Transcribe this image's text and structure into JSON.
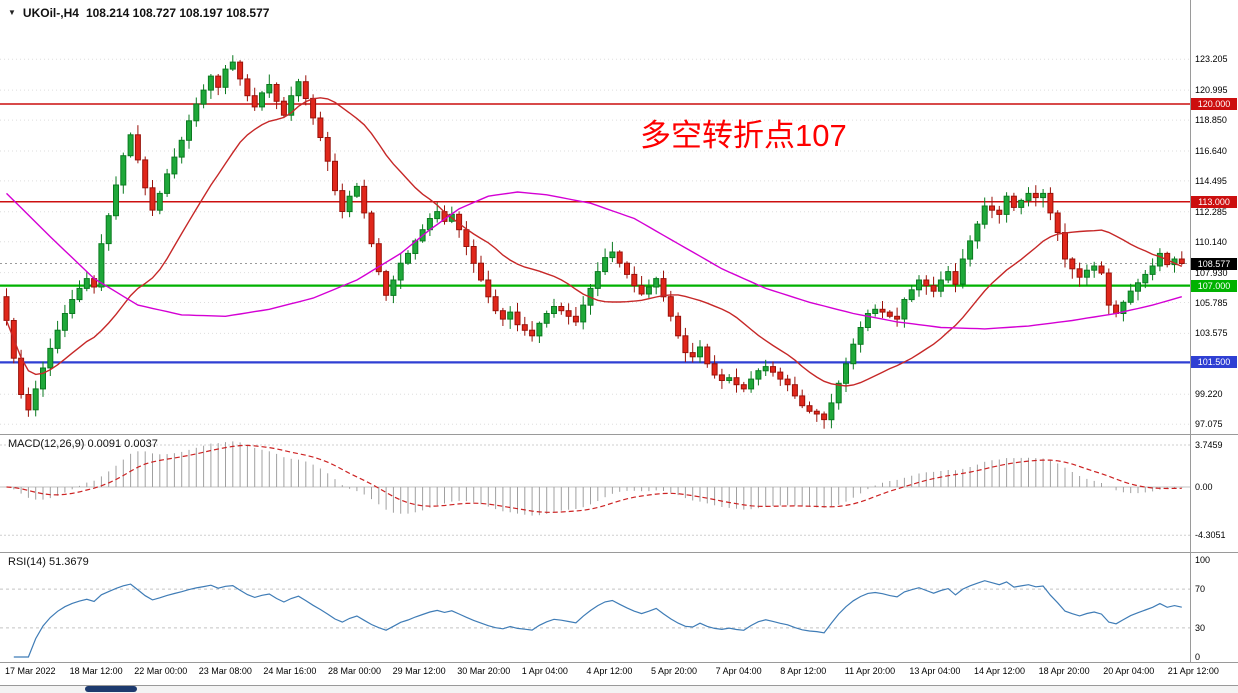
{
  "chart": {
    "symbol_period": "UKOil-,H4",
    "ohlc_readout": "108.214 108.727 108.197 108.577",
    "dropdown_icon": "▼",
    "annotation": {
      "text": "多空转折点107",
      "color": "#fe0000"
    },
    "price_axis_labels": [
      "123.205",
      "120.995",
      "118.850",
      "116.640",
      "114.495",
      "112.285",
      "110.140",
      "107.930",
      "105.785",
      "103.575",
      "99.220",
      "97.075"
    ],
    "levels": [
      {
        "label": "120.000",
        "value": 120.0,
        "color": "#cc0f0f",
        "width": 1.5
      },
      {
        "label": "113.000",
        "value": 113.0,
        "color": "#cc0f0f",
        "width": 1.5
      },
      {
        "label": "107.000",
        "value": 107.0,
        "color": "#00b200",
        "width": 2.2
      },
      {
        "label": "101.500",
        "value": 101.5,
        "color": "#2f3fd3",
        "width": 2.2
      }
    ],
    "current_price": {
      "label": "108.577",
      "value": 108.577,
      "bg": "#000000",
      "fg": "#ffffff"
    }
  },
  "macd": {
    "label": "MACD(12,26,9) 0.0091 0.0037",
    "params": [
      12,
      26,
      9
    ],
    "scale": [
      {
        "label": "3.7459",
        "value": 3.7459
      },
      {
        "label": "0.00",
        "value": 0
      },
      {
        "label": "-4.3051",
        "value": -4.3051
      }
    ]
  },
  "rsi": {
    "label": "RSI(14) 51.3679",
    "period": 14,
    "scale": [
      {
        "label": "100",
        "value": 100
      },
      {
        "label": "70",
        "value": 70
      },
      {
        "label": "30",
        "value": 30
      },
      {
        "label": "0",
        "value": 0
      }
    ],
    "levels": [
      70,
      30
    ]
  },
  "time_axis": [
    "17 Mar 2022",
    "18 Mar 12:00",
    "22 Mar 00:00",
    "23 Mar 08:00",
    "24 Mar 16:00",
    "28 Mar 00:00",
    "29 Mar 12:00",
    "30 Mar 20:00",
    "1 Apr 04:00",
    "4 Apr 12:00",
    "5 Apr 20:00",
    "7 Apr 04:00",
    "8 Apr 12:00",
    "11 Apr 20:00",
    "13 Apr 04:00",
    "14 Apr 12:00",
    "18 Apr 20:00",
    "20 Apr 04:00",
    "21 Apr 12:00"
  ],
  "chart_data": {
    "type": "candlestick",
    "symbol": "UKOil-",
    "timeframe": "H4",
    "title": "UKOil-,H4 108.214 108.727 108.197 108.577",
    "last_ohlc": {
      "open": 108.214,
      "high": 108.727,
      "low": 108.197,
      "close": 108.577
    },
    "ylim": [
      96.37,
      127.45
    ],
    "grid": true,
    "first_open": 106.2,
    "closes": [
      104.5,
      101.8,
      99.2,
      98.1,
      99.6,
      101.1,
      102.5,
      103.8,
      105.0,
      106.0,
      106.8,
      107.5,
      106.9,
      110.0,
      112.0,
      114.2,
      116.3,
      117.8,
      116.0,
      114.0,
      112.4,
      113.6,
      115.0,
      116.2,
      117.4,
      118.8,
      120.0,
      121.0,
      122.0,
      121.2,
      122.5,
      123.0,
      121.8,
      120.6,
      119.8,
      120.8,
      121.4,
      120.2,
      119.2,
      120.6,
      121.6,
      120.4,
      119.0,
      117.6,
      115.9,
      113.8,
      112.3,
      113.4,
      114.1,
      112.2,
      110.0,
      108.0,
      106.3,
      107.4,
      108.6,
      109.3,
      110.2,
      111.0,
      111.8,
      112.3,
      111.6,
      112.1,
      111.0,
      109.8,
      108.6,
      107.4,
      106.2,
      105.2,
      104.6,
      105.1,
      104.2,
      103.8,
      103.4,
      104.3,
      105.0,
      105.5,
      105.2,
      104.8,
      104.4,
      105.6,
      106.8,
      108.0,
      109.0,
      109.4,
      108.6,
      107.8,
      107.0,
      106.4,
      106.9,
      107.5,
      106.2,
      104.8,
      103.4,
      102.2,
      101.9,
      102.6,
      101.4,
      100.6,
      100.2,
      100.4,
      99.9,
      99.6,
      100.3,
      100.9,
      101.2,
      100.8,
      100.3,
      99.9,
      99.1,
      98.4,
      98.0,
      97.8,
      97.4,
      98.6,
      100.0,
      101.4,
      102.8,
      104.0,
      105.0,
      105.3,
      105.1,
      104.8,
      104.6,
      106.0,
      106.7,
      107.4,
      107.0,
      106.6,
      107.4,
      108.0,
      107.1,
      108.9,
      110.2,
      111.4,
      112.7,
      112.4,
      112.1,
      113.4,
      112.6,
      113.1,
      113.6,
      113.3,
      113.6,
      112.2,
      110.8,
      108.9,
      108.2,
      107.6,
      108.1,
      108.4,
      107.9,
      105.6,
      105.0,
      105.8,
      106.6,
      107.2,
      107.8,
      108.4,
      109.3,
      108.5,
      108.9,
      108.577
    ],
    "candle_colors": {
      "up": "#1fa83a",
      "up_border": "#0b7a20",
      "down": "#e0271b",
      "down_border": "#99120a"
    },
    "ma_fast": {
      "color": "#c62828",
      "period": 20
    },
    "ma_slow": {
      "color": "#d400d4",
      "points": [
        [
          0,
          113.6
        ],
        [
          6,
          110.5
        ],
        [
          12,
          107.5
        ],
        [
          18,
          105.6
        ],
        [
          24,
          104.9
        ],
        [
          30,
          104.8
        ],
        [
          36,
          105.3
        ],
        [
          42,
          106.1
        ],
        [
          48,
          107.4
        ],
        [
          54,
          109.3
        ],
        [
          58,
          111.0
        ],
        [
          62,
          112.5
        ],
        [
          66,
          113.4
        ],
        [
          70,
          113.7
        ],
        [
          74,
          113.5
        ],
        [
          80,
          112.9
        ],
        [
          86,
          111.8
        ],
        [
          92,
          110.0
        ],
        [
          98,
          108.2
        ],
        [
          104,
          106.8
        ],
        [
          110,
          105.8
        ],
        [
          116,
          105.0
        ],
        [
          122,
          104.4
        ],
        [
          128,
          104.0
        ],
        [
          134,
          103.9
        ],
        [
          140,
          104.1
        ],
        [
          146,
          104.5
        ],
        [
          152,
          105.0
        ],
        [
          157,
          105.6
        ],
        [
          161,
          106.2
        ]
      ]
    },
    "macd_colors": {
      "histogram": "#a0a0a0",
      "signal": "#cc2222"
    },
    "rsi_color": "#3f7cb6"
  }
}
